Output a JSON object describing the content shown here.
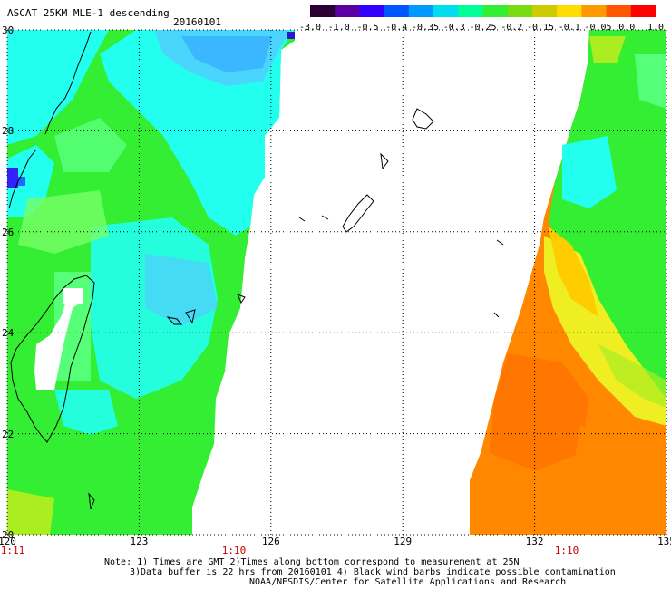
{
  "header": {
    "title": "ASCAT 25KM MLE-1 descending",
    "date": "20160101"
  },
  "colorbar": {
    "labels": [
      "-3.0",
      "-1.0",
      "-0.5",
      "-0.4",
      "-0.35",
      "-0.3",
      "-0.25",
      "-0.2",
      "-0.15",
      "-0.1",
      "-0.05",
      "0.0",
      "1.0"
    ],
    "colors": [
      "#2a0033",
      "#5a00a0",
      "#3300ff",
      "#0055ff",
      "#0099ff",
      "#00ddee",
      "#00ff99",
      "#33ee33",
      "#77dd11",
      "#cccc00",
      "#ffdd00",
      "#ff9900",
      "#ff5500",
      "#ff0000"
    ]
  },
  "axes": {
    "lat_labels": [
      "30",
      "28",
      "26",
      "24",
      "22",
      "20"
    ],
    "lon_labels": [
      "120",
      "123",
      "126",
      "129",
      "132",
      "135"
    ],
    "time_labels": [
      "1:11",
      "1:10",
      "1:10"
    ]
  },
  "swath_colors": {
    "cyan": "#22ffee",
    "light_green": "#55ff77",
    "green": "#33ee33",
    "blue": "#1199ff",
    "orange": "#ff8800",
    "dark_orange": "#ff7700",
    "yellow": "#eeee22"
  },
  "notes": {
    "line1": "Note: 1) Times are GMT 2)Times along bottom correspond to measurement at 25N",
    "line2": "3)Data buffer is 22 hrs from 20160101 4) Black wind barbs indicate possible contamination",
    "line3": "NOAA/NESDIS/Center for Satellite Applications and Research"
  }
}
